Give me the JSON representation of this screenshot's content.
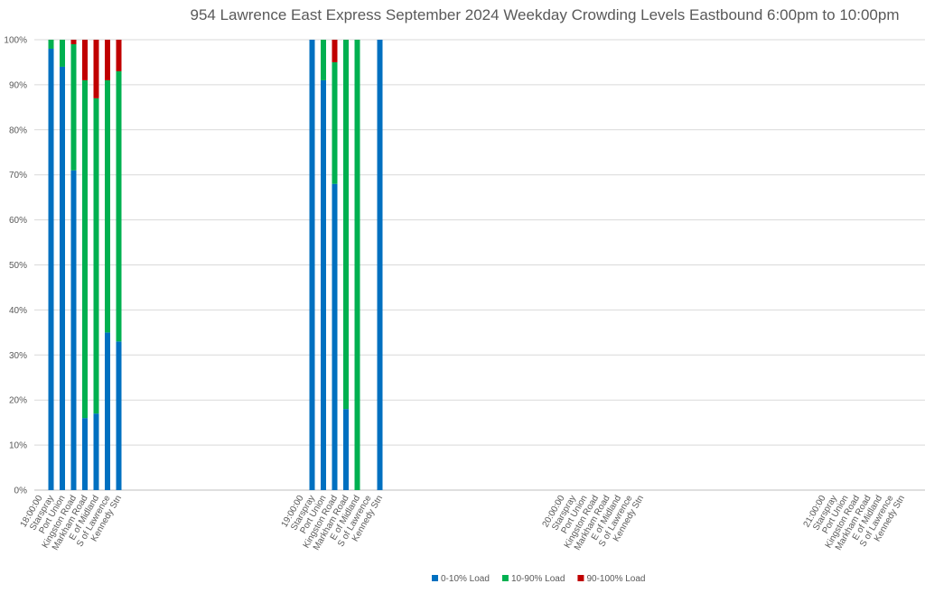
{
  "chart_data": {
    "type": "bar",
    "stacked": true,
    "title": "954 Lawrence East Express September 2024  Weekday Crowding Levels Eastbound 6:00pm to 10:00pm",
    "xlabel": "",
    "ylabel": "",
    "ylim": [
      0,
      100
    ],
    "y_ticks": [
      "0%",
      "10%",
      "20%",
      "30%",
      "40%",
      "50%",
      "60%",
      "70%",
      "80%",
      "90%",
      "100%"
    ],
    "grid": true,
    "legend_position": "bottom",
    "categories": [
      "18:00:00",
      "Starspray",
      "Port Union",
      "Kingston Road",
      "Markham Road",
      "E of Midland",
      "S of Lawrence",
      "Kennedy Stn",
      "19:00:00",
      "Starspray",
      "Port Union",
      "Kingston Road",
      "Markham Road",
      "E of Midland",
      "S of Lawrence",
      "Kennedy Stn",
      "20:00:00",
      "Starspray",
      "Port Union",
      "Kingston Road",
      "Markham Road",
      "E of Midland",
      "S of Lawrence",
      "Kennedy Stn",
      "21:00:00",
      "Starspray",
      "Port Union",
      "Kingston Road",
      "Markham Road",
      "E of Midland",
      "S of Lawrence",
      "Kennedy Stn"
    ],
    "series": [
      {
        "name": "0-10% Load",
        "color": "#0070C0",
        "values": [
          null,
          98,
          94,
          71,
          16,
          17,
          35,
          33,
          null,
          100,
          91,
          68,
          18,
          0,
          null,
          100,
          null,
          null,
          null,
          null,
          null,
          null,
          null,
          null,
          null,
          null,
          null,
          null,
          null,
          null,
          null,
          null
        ]
      },
      {
        "name": "10-90% Load",
        "color": "#00B050",
        "values": [
          null,
          2,
          6,
          28,
          75,
          70,
          56,
          60,
          null,
          0,
          9,
          27,
          82,
          100,
          null,
          0,
          null,
          null,
          null,
          null,
          null,
          null,
          null,
          null,
          null,
          null,
          null,
          null,
          null,
          null,
          null,
          null
        ]
      },
      {
        "name": "90-100% Load",
        "color": "#C00000",
        "values": [
          null,
          0,
          0,
          1,
          9,
          13,
          9,
          7,
          null,
          0,
          0,
          5,
          0,
          0,
          null,
          0,
          null,
          null,
          null,
          null,
          null,
          null,
          null,
          null,
          null,
          null,
          null,
          null,
          null,
          null,
          null,
          null
        ]
      }
    ]
  }
}
